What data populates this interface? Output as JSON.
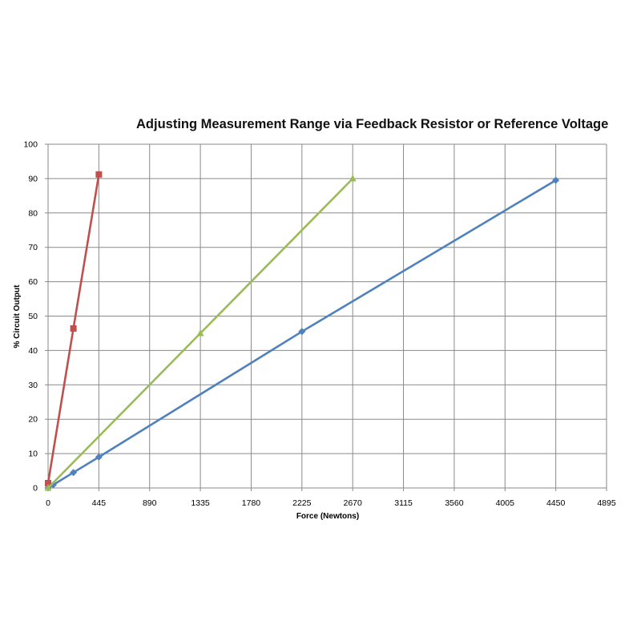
{
  "chart_data": {
    "type": "line",
    "title": "Adjusting  Measurement Range via Feedback Resistor or Reference Voltage",
    "xlabel": "Force (Newtons)",
    "ylabel": "% Circuit Output",
    "xlim": [
      0,
      4895
    ],
    "ylim": [
      0,
      100
    ],
    "x_ticks": [
      0,
      445,
      890,
      1335,
      1780,
      2225,
      2670,
      3115,
      3560,
      4005,
      4450,
      4895
    ],
    "y_ticks": [
      0,
      10,
      20,
      30,
      40,
      50,
      60,
      70,
      80,
      90,
      100
    ],
    "grid": true,
    "legend": "none",
    "series": [
      {
        "color": "#4f81bd",
        "marker": "diamond",
        "x": [
          0,
          45,
          222,
          445,
          2225,
          4450
        ],
        "y": [
          0,
          0.9,
          4.5,
          9,
          45.5,
          89.5
        ]
      },
      {
        "color": "#c0504d",
        "marker": "square",
        "x": [
          0,
          222,
          445
        ],
        "y": [
          1.4,
          46.4,
          91.2
        ]
      },
      {
        "color": "#9bbb59",
        "marker": "triangle",
        "x": [
          0,
          1335,
          2670
        ],
        "y": [
          0,
          45,
          90
        ]
      }
    ]
  }
}
